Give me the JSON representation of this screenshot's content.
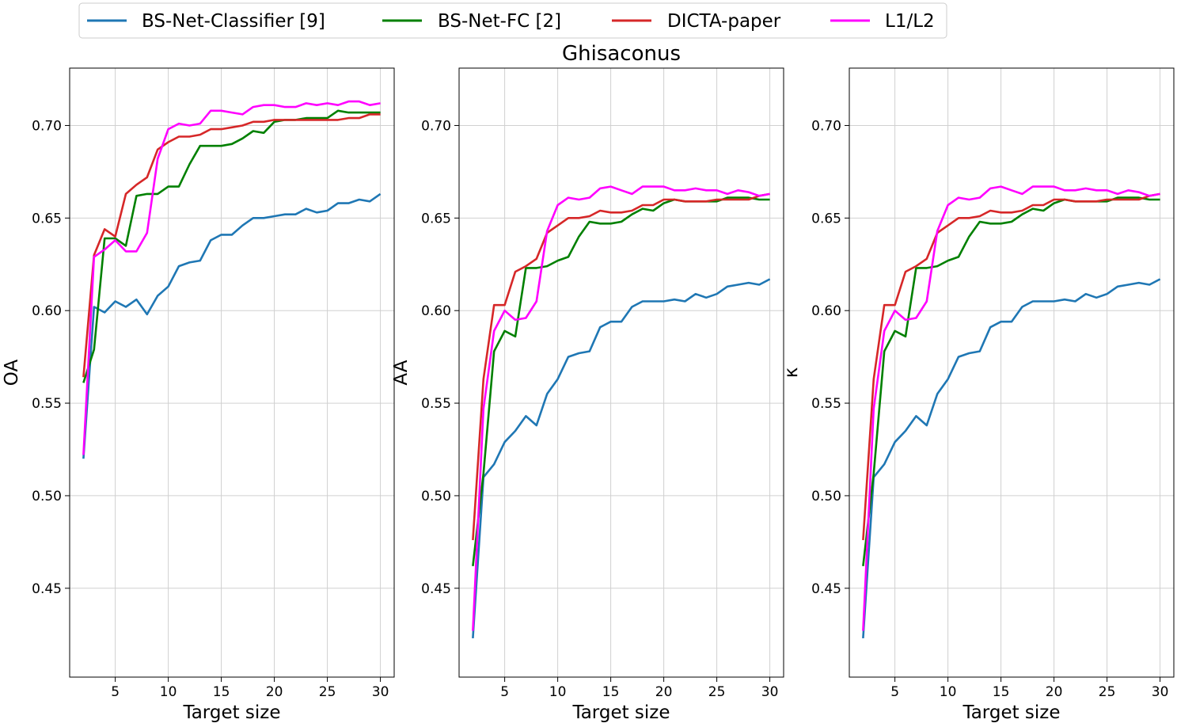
{
  "chart_data": [
    {
      "type": "line",
      "title": "",
      "xlabel": "Target size",
      "ylabel": "OA",
      "xlim": [
        0.7,
        31.3
      ],
      "ylim": [
        0.402,
        0.731
      ],
      "xticks": [
        5,
        10,
        15,
        20,
        25,
        30
      ],
      "yticks": [
        0.45,
        0.5,
        0.55,
        0.6,
        0.65,
        0.7
      ],
      "grid": true,
      "x": [
        2,
        3,
        4,
        5,
        6,
        7,
        8,
        9,
        10,
        11,
        12,
        13,
        14,
        15,
        16,
        17,
        18,
        19,
        20,
        21,
        22,
        23,
        24,
        25,
        26,
        27,
        28,
        29,
        30
      ],
      "series": [
        {
          "name": "BS-Net-Classifier [9]",
          "color": "#1f77b4",
          "values": [
            0.52,
            0.602,
            0.599,
            0.605,
            0.602,
            0.606,
            0.598,
            0.608,
            0.613,
            0.624,
            0.626,
            0.627,
            0.638,
            0.641,
            0.641,
            0.646,
            0.65,
            0.65,
            0.651,
            0.652,
            0.652,
            0.655,
            0.653,
            0.654,
            0.658,
            0.658,
            0.66,
            0.659,
            0.663
          ]
        },
        {
          "name": "BS-Net-FC [2]",
          "color": "#008000",
          "values": [
            0.561,
            0.579,
            0.639,
            0.639,
            0.635,
            0.662,
            0.663,
            0.663,
            0.667,
            0.667,
            0.679,
            0.689,
            0.689,
            0.689,
            0.69,
            0.693,
            0.697,
            0.696,
            0.702,
            0.703,
            0.703,
            0.704,
            0.704,
            0.704,
            0.708,
            0.707,
            0.707,
            0.707,
            0.707
          ]
        },
        {
          "name": "DICTA-paper",
          "color": "#d62728",
          "values": [
            0.564,
            0.63,
            0.644,
            0.64,
            0.663,
            0.668,
            0.672,
            0.687,
            0.691,
            0.694,
            0.694,
            0.695,
            0.698,
            0.698,
            0.699,
            0.7,
            0.702,
            0.702,
            0.703,
            0.703,
            0.703,
            0.703,
            0.703,
            0.703,
            0.703,
            0.704,
            0.704,
            0.706,
            0.706
          ]
        },
        {
          "name": "L1/L2",
          "color": "#ff00ff",
          "values": [
            0.522,
            0.629,
            0.633,
            0.638,
            0.632,
            0.632,
            0.642,
            0.682,
            0.698,
            0.701,
            0.7,
            0.701,
            0.708,
            0.708,
            0.707,
            0.706,
            0.71,
            0.711,
            0.711,
            0.71,
            0.71,
            0.712,
            0.711,
            0.712,
            0.711,
            0.713,
            0.713,
            0.711,
            0.712
          ]
        }
      ]
    },
    {
      "type": "line",
      "title": "Ghisaconus",
      "xlabel": "Target size",
      "ylabel": "AA",
      "xlim": [
        0.7,
        31.3
      ],
      "ylim": [
        0.402,
        0.731
      ],
      "xticks": [
        5,
        10,
        15,
        20,
        25,
        30
      ],
      "yticks": [
        0.45,
        0.5,
        0.55,
        0.6,
        0.65,
        0.7
      ],
      "grid": true,
      "x": [
        2,
        3,
        4,
        5,
        6,
        7,
        8,
        9,
        10,
        11,
        12,
        13,
        14,
        15,
        16,
        17,
        18,
        19,
        20,
        21,
        22,
        23,
        24,
        25,
        26,
        27,
        28,
        29,
        30
      ],
      "series": [
        {
          "name": "BS-Net-Classifier [9]",
          "color": "#1f77b4",
          "values": [
            0.423,
            0.51,
            0.517,
            0.529,
            0.535,
            0.543,
            0.538,
            0.555,
            0.563,
            0.575,
            0.577,
            0.578,
            0.591,
            0.594,
            0.594,
            0.602,
            0.605,
            0.605,
            0.605,
            0.606,
            0.605,
            0.609,
            0.607,
            0.609,
            0.613,
            0.614,
            0.615,
            0.614,
            0.617
          ]
        },
        {
          "name": "BS-Net-FC [2]",
          "color": "#008000",
          "values": [
            0.462,
            0.512,
            0.578,
            0.589,
            0.586,
            0.623,
            0.623,
            0.624,
            0.627,
            0.629,
            0.64,
            0.648,
            0.647,
            0.647,
            0.648,
            0.652,
            0.655,
            0.654,
            0.658,
            0.66,
            0.659,
            0.659,
            0.659,
            0.659,
            0.661,
            0.661,
            0.661,
            0.66,
            0.66
          ]
        },
        {
          "name": "DICTA-paper",
          "color": "#d62728",
          "values": [
            0.476,
            0.563,
            0.603,
            0.603,
            0.621,
            0.624,
            0.628,
            0.642,
            0.646,
            0.65,
            0.65,
            0.651,
            0.654,
            0.653,
            0.653,
            0.654,
            0.657,
            0.657,
            0.66,
            0.66,
            0.659,
            0.659,
            0.659,
            0.66,
            0.66,
            0.66,
            0.66,
            0.662,
            0.663
          ]
        },
        {
          "name": "L1/L2",
          "color": "#ff00ff",
          "values": [
            0.427,
            0.547,
            0.589,
            0.6,
            0.595,
            0.596,
            0.605,
            0.643,
            0.657,
            0.661,
            0.66,
            0.661,
            0.666,
            0.667,
            0.665,
            0.663,
            0.667,
            0.667,
            0.667,
            0.665,
            0.665,
            0.666,
            0.665,
            0.665,
            0.663,
            0.665,
            0.664,
            0.662,
            0.663
          ]
        }
      ]
    },
    {
      "type": "line",
      "title": "",
      "xlabel": "Target size",
      "ylabel": "κ",
      "xlim": [
        0.7,
        31.3
      ],
      "ylim": [
        0.402,
        0.731
      ],
      "xticks": [
        5,
        10,
        15,
        20,
        25,
        30
      ],
      "yticks": [
        0.45,
        0.5,
        0.55,
        0.6,
        0.65,
        0.7
      ],
      "grid": true,
      "x": [
        2,
        3,
        4,
        5,
        6,
        7,
        8,
        9,
        10,
        11,
        12,
        13,
        14,
        15,
        16,
        17,
        18,
        19,
        20,
        21,
        22,
        23,
        24,
        25,
        26,
        27,
        28,
        29,
        30
      ],
      "series": [
        {
          "name": "BS-Net-Classifier [9]",
          "color": "#1f77b4",
          "values": [
            0.423,
            0.51,
            0.517,
            0.529,
            0.535,
            0.543,
            0.538,
            0.555,
            0.563,
            0.575,
            0.577,
            0.578,
            0.591,
            0.594,
            0.594,
            0.602,
            0.605,
            0.605,
            0.605,
            0.606,
            0.605,
            0.609,
            0.607,
            0.609,
            0.613,
            0.614,
            0.615,
            0.614,
            0.617
          ]
        },
        {
          "name": "BS-Net-FC [2]",
          "color": "#008000",
          "values": [
            0.462,
            0.512,
            0.578,
            0.589,
            0.586,
            0.623,
            0.623,
            0.624,
            0.627,
            0.629,
            0.64,
            0.648,
            0.647,
            0.647,
            0.648,
            0.652,
            0.655,
            0.654,
            0.658,
            0.66,
            0.659,
            0.659,
            0.659,
            0.659,
            0.661,
            0.661,
            0.661,
            0.66,
            0.66
          ]
        },
        {
          "name": "DICTA-paper",
          "color": "#d62728",
          "values": [
            0.476,
            0.563,
            0.603,
            0.603,
            0.621,
            0.624,
            0.628,
            0.642,
            0.646,
            0.65,
            0.65,
            0.651,
            0.654,
            0.653,
            0.653,
            0.654,
            0.657,
            0.657,
            0.66,
            0.66,
            0.659,
            0.659,
            0.659,
            0.66,
            0.66,
            0.66,
            0.66,
            0.662,
            0.663
          ]
        },
        {
          "name": "L1/L2",
          "color": "#ff00ff",
          "values": [
            0.427,
            0.547,
            0.589,
            0.6,
            0.595,
            0.596,
            0.605,
            0.643,
            0.657,
            0.661,
            0.66,
            0.661,
            0.666,
            0.667,
            0.665,
            0.663,
            0.667,
            0.667,
            0.667,
            0.665,
            0.665,
            0.666,
            0.665,
            0.665,
            0.663,
            0.665,
            0.664,
            0.662,
            0.663
          ]
        }
      ]
    }
  ],
  "legend": {
    "placement": "top-center",
    "entries": [
      {
        "label": "BS-Net-Classifier [9]",
        "color": "#1f77b4"
      },
      {
        "label": "BS-Net-FC [2]",
        "color": "#008000"
      },
      {
        "label": "DICTA-paper",
        "color": "#d62728"
      },
      {
        "label": "L1/L2",
        "color": "#ff00ff"
      }
    ]
  }
}
